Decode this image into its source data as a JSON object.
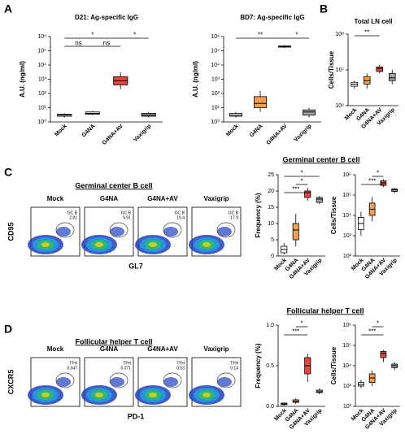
{
  "panel_labels": [
    "A",
    "B",
    "C",
    "D"
  ],
  "flow": [
    {
      "title": "Germinal center B cell",
      "chart_title": "Germinal center B cell",
      "x_label": "GL7",
      "y_label": "CD95",
      "samples": [
        {
          "name": "Mock",
          "gate": "GC B",
          "value": 2.81
        },
        {
          "name": "G4NA",
          "gate": "GC B",
          "value": 9.91
        },
        {
          "name": "G4NA+AV",
          "gate": "GC B",
          "value": 19.4
        },
        {
          "name": "Vaxigrip",
          "gate": "GC B",
          "value": 17.9
        }
      ]
    },
    {
      "title": "Follicular helper T cell",
      "chart_title": "Follicular helper T cell",
      "x_label": "PD-1",
      "y_label": "CXCR5",
      "samples": [
        {
          "name": "Mock",
          "gate": "TFH",
          "value": 0.047
        },
        {
          "name": "G4NA",
          "gate": "TFH",
          "value": 0.071
        },
        {
          "name": "G4NA+AV",
          "gate": "TFH",
          "value": 0.53
        },
        {
          "name": "Vaxigrip",
          "gate": "TFH",
          "value": 0.14
        }
      ]
    }
  ],
  "chart_data": [
    {
      "type": "box",
      "title": "D21: Ag-specific IgG",
      "ylabel": "A.U. (ng/ml)",
      "log": true,
      "categories": [
        "Mock",
        "G4NA",
        "G4NA+AV",
        "Vaxigrip"
      ],
      "colors": [
        "#ffffff",
        "#ffffff",
        "#e8453c",
        "#a6a6a6"
      ],
      "boxes": [
        {
          "min": 2,
          "q1": 2.5,
          "median": 3,
          "q3": 3.5,
          "max": 4
        },
        {
          "min": 3,
          "q1": 3.5,
          "median": 4,
          "q3": 5,
          "max": 6
        },
        {
          "min": 200,
          "q1": 400,
          "median": 800,
          "q3": 1500,
          "max": 3000
        },
        {
          "min": 2,
          "q1": 2.5,
          "median": 3,
          "q3": 4,
          "max": 5
        }
      ],
      "ylim": [
        1,
        1000000
      ],
      "yticks": [
        {
          "value": 1,
          "label": "10⁰"
        },
        {
          "value": 10,
          "label": "10¹"
        },
        {
          "value": 100,
          "label": "10²"
        },
        {
          "value": 1000,
          "label": "10³"
        },
        {
          "value": 10000,
          "label": "10⁴"
        },
        {
          "value": 100000,
          "label": "10⁵"
        },
        {
          "value": 1000000,
          "label": "10⁶"
        }
      ],
      "comparisons": [
        {
          "pair": [
            0,
            2
          ],
          "label": "*"
        },
        {
          "pair": [
            0,
            1
          ],
          "label": "ns"
        },
        {
          "pair": [
            1,
            2
          ],
          "label": "ns"
        },
        {
          "pair": [
            2,
            3
          ],
          "label": "*"
        }
      ]
    },
    {
      "type": "box",
      "title": "BD7: Ag-specific IgG",
      "ylabel": "A.U. (ng/ml)",
      "log": true,
      "categories": [
        "Mock",
        "G4NA",
        "G4NA+AV",
        "Vaxigrip"
      ],
      "colors": [
        "#ffffff",
        "#f0a050",
        "#ffffff",
        "#a6a6a6"
      ],
      "boxes": [
        {
          "min": 2,
          "q1": 2.5,
          "median": 3,
          "q3": 4,
          "max": 5
        },
        {
          "min": 5,
          "q1": 10,
          "median": 20,
          "q3": 60,
          "max": 150
        },
        {
          "min": 150000,
          "q1": 180000,
          "median": 200000,
          "q3": 220000,
          "max": 250000
        },
        {
          "min": 2,
          "q1": 3,
          "median": 5,
          "q3": 7,
          "max": 10
        }
      ],
      "ylim": [
        1,
        1000000
      ],
      "yticks": [
        {
          "value": 1,
          "label": "10⁰"
        },
        {
          "value": 10,
          "label": "10¹"
        },
        {
          "value": 100,
          "label": "10²"
        },
        {
          "value": 1000,
          "label": "10³"
        },
        {
          "value": 10000,
          "label": "10⁴"
        },
        {
          "value": 100000,
          "label": "10⁵"
        },
        {
          "value": 1000000,
          "label": "10⁶"
        }
      ],
      "comparisons": [
        {
          "pair": [
            0,
            2
          ],
          "label": "**"
        },
        {
          "pair": [
            2,
            3
          ],
          "label": "*"
        }
      ]
    },
    {
      "type": "box",
      "title": "Total LN cell",
      "ylabel": "Cells/Tissue",
      "log": true,
      "categories": [
        "Mock",
        "G4NA",
        "G4NA+AV",
        "Vaxigrip"
      ],
      "colors": [
        "#ffffff",
        "#f0a050",
        "#e8453c",
        "#a6a6a6"
      ],
      "boxes": [
        {
          "min": 3000000,
          "q1": 3500000,
          "median": 4000000,
          "q3": 4500000,
          "max": 5000000
        },
        {
          "min": 3000000,
          "q1": 4000000,
          "median": 5000000,
          "q3": 6500000,
          "max": 8000000
        },
        {
          "min": 8000000,
          "q1": 9000000,
          "median": 11000000,
          "q3": 12000000,
          "max": 14000000
        },
        {
          "min": 4000000,
          "q1": 5000000,
          "median": 6000000,
          "q3": 8000000,
          "max": 10000000
        }
      ],
      "ylim": [
        1000000,
        100000000
      ],
      "yticks": [
        {
          "value": 1000000,
          "label": "10⁶"
        },
        {
          "value": 10000000,
          "label": "10⁷"
        },
        {
          "value": 100000000,
          "label": "10⁸"
        }
      ],
      "comparisons": [
        {
          "pair": [
            0,
            2
          ],
          "label": "**"
        }
      ]
    },
    {
      "type": "box",
      "ylabel": "Frequency (%)",
      "log": false,
      "categories": [
        "Mock",
        "G4NA",
        "G4NA+AV",
        "Vaxigrip"
      ],
      "colors": [
        "#ffffff",
        "#f0a050",
        "#e8453c",
        "#a6a6a6"
      ],
      "boxes": [
        {
          "min": 0.5,
          "q1": 1,
          "median": 2,
          "q3": 3,
          "max": 4
        },
        {
          "min": 3,
          "q1": 5,
          "median": 8,
          "q3": 10,
          "max": 13
        },
        {
          "min": 17,
          "q1": 18,
          "median": 19.5,
          "q3": 20,
          "max": 21
        },
        {
          "min": 16,
          "q1": 16.5,
          "median": 17.5,
          "q3": 18,
          "max": 18.5
        }
      ],
      "ylim": [
        0,
        25
      ],
      "yticks": [
        0,
        5,
        10,
        15,
        20,
        25
      ],
      "comparisons": [
        {
          "pair": [
            0,
            3
          ],
          "label": "*"
        },
        {
          "pair": [
            1,
            2
          ],
          "label": "*"
        },
        {
          "pair": [
            0,
            2
          ],
          "label": "***"
        }
      ]
    },
    {
      "type": "box",
      "ylabel": "Cells/Tissue",
      "log": true,
      "categories": [
        "Mock",
        "G4NA",
        "G4NA+AV",
        "Vaxigrip"
      ],
      "colors": [
        "#ffffff",
        "#f0a050",
        "#e8453c",
        "#a6a6a6"
      ],
      "boxes": [
        {
          "min": 1000,
          "q1": 2000,
          "median": 4000,
          "q3": 8000,
          "max": 15000
        },
        {
          "min": 5000,
          "q1": 10000,
          "median": 20000,
          "q3": 40000,
          "max": 80000
        },
        {
          "min": 250000,
          "q1": 300000,
          "median": 400000,
          "q3": 500000,
          "max": 600000
        },
        {
          "min": 120000,
          "q1": 150000,
          "median": 180000,
          "q3": 200000,
          "max": 220000
        }
      ],
      "ylim": [
        100,
        1000000
      ],
      "yticks": [
        {
          "value": 100,
          "label": "10²"
        },
        {
          "value": 1000,
          "label": "10³"
        },
        {
          "value": 10000,
          "label": "10⁴"
        },
        {
          "value": 100000,
          "label": "10⁵"
        },
        {
          "value": 1000000,
          "label": "10⁶"
        }
      ],
      "comparisons": [
        {
          "pair": [
            1,
            2
          ],
          "label": "*"
        },
        {
          "pair": [
            0,
            2
          ],
          "label": "***"
        }
      ]
    },
    {
      "type": "box",
      "ylabel": "Frequency (%)",
      "log": false,
      "categories": [
        "Mock",
        "G4NA",
        "G4NA+AV",
        "Vaxigrip"
      ],
      "colors": [
        "#ffffff",
        "#f0a050",
        "#e8453c",
        "#a6a6a6"
      ],
      "boxes": [
        {
          "min": 0.01,
          "q1": 0.02,
          "median": 0.03,
          "q3": 0.04,
          "max": 0.05
        },
        {
          "min": 0.03,
          "q1": 0.05,
          "median": 0.06,
          "q3": 0.08,
          "max": 0.1
        },
        {
          "min": 0.3,
          "q1": 0.4,
          "median": 0.5,
          "q3": 0.6,
          "max": 0.65
        },
        {
          "min": 0.15,
          "q1": 0.17,
          "median": 0.18,
          "q3": 0.2,
          "max": 0.22
        }
      ],
      "ylim": [
        0,
        1
      ],
      "yticks": [
        {
          "value": 0,
          "label": "0.0"
        },
        0.5,
        {
          "value": 1,
          "label": "1.0"
        }
      ],
      "comparisons": [
        {
          "pair": [
            1,
            2
          ],
          "label": "*"
        },
        {
          "pair": [
            0,
            2
          ],
          "label": "***"
        }
      ]
    },
    {
      "type": "box",
      "ylabel": "Cells/Tissue",
      "log": true,
      "categories": [
        "Mock",
        "G4NA",
        "G4NA+AV",
        "Vaxigrip"
      ],
      "colors": [
        "#ffffff",
        "#f0a050",
        "#e8453c",
        "#a6a6a6"
      ],
      "boxes": [
        {
          "min": 800,
          "q1": 1000,
          "median": 1200,
          "q3": 1500,
          "max": 2000
        },
        {
          "min": 1000,
          "q1": 1500,
          "median": 2500,
          "q3": 4000,
          "max": 6000
        },
        {
          "min": 15000,
          "q1": 25000,
          "median": 40000,
          "q3": 50000,
          "max": 60000
        },
        {
          "min": 6000,
          "q1": 8000,
          "median": 10000,
          "q3": 12000,
          "max": 15000
        }
      ],
      "ylim": [
        100,
        1000000
      ],
      "yticks": [
        {
          "value": 100,
          "label": "10²"
        },
        {
          "value": 1000,
          "label": "10³"
        },
        {
          "value": 10000,
          "label": "10⁴"
        },
        {
          "value": 100000,
          "label": "10⁵"
        },
        {
          "value": 1000000,
          "label": "10⁶"
        }
      ],
      "comparisons": [
        {
          "pair": [
            1,
            2
          ],
          "label": "*"
        },
        {
          "pair": [
            0,
            2
          ],
          "label": "***"
        }
      ]
    }
  ]
}
